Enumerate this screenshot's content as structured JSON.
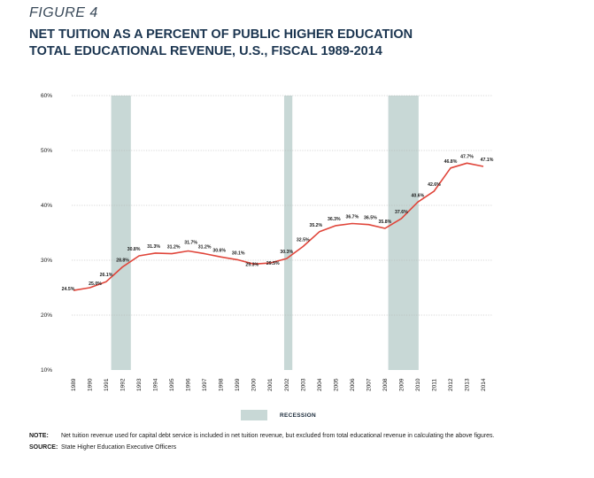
{
  "figure_label": "FIGURE 4",
  "title_line1": "NET TUITION AS A PERCENT OF PUBLIC HIGHER EDUCATION",
  "title_line2": "TOTAL EDUCATIONAL REVENUE, U.S., FISCAL 1989-2014",
  "legend": {
    "label": "RECESSION"
  },
  "note": {
    "label": "NOTE:",
    "text": "Net tuition revenue used for capital debt service is included in net tuition revenue, but excluded from total educational revenue in calculating the above figures."
  },
  "source": {
    "label": "SOURCE:",
    "text": "State Higher Education Executive Officers"
  },
  "colors": {
    "line": "#e0453a",
    "recession": "#c8d8d6",
    "grid": "#b0b0b0",
    "text": "#1a1a1a"
  },
  "chart_data": {
    "type": "line",
    "x": [
      1989,
      1990,
      1991,
      1992,
      1993,
      1994,
      1995,
      1996,
      1997,
      1998,
      1999,
      2000,
      2001,
      2002,
      2003,
      2004,
      2005,
      2006,
      2007,
      2008,
      2009,
      2010,
      2011,
      2012,
      2013,
      2014
    ],
    "series": [
      {
        "values": [
          24.5,
          25.0,
          26.1,
          28.8,
          30.8,
          31.3,
          31.2,
          31.7,
          31.2,
          30.6,
          30.1,
          29.3,
          29.5,
          30.3,
          32.5,
          35.2,
          36.3,
          36.7,
          36.5,
          35.8,
          37.6,
          40.6,
          42.6,
          46.8,
          47.7,
          47.1
        ]
      }
    ],
    "data_labels": [
      "24.5%",
      "25.0%",
      "26.1%",
      "28.8%",
      "30.8%",
      "31.3%",
      "31.2%",
      "31.7%",
      "31.2%",
      "30.6%",
      "30.1%",
      "29.3%",
      "29.5%",
      "30.3%",
      "32.5%",
      "35.2%",
      "36.3%",
      "36.7%",
      "36.5%",
      "35.8%",
      "37.6%",
      "40.6%",
      "42.6%",
      "46.8%",
      "47.7%",
      "47.1%"
    ],
    "y_ticks": [
      10,
      20,
      30,
      40,
      50,
      60
    ],
    "y_tick_labels": [
      "10%",
      "20%",
      "30%",
      "40%",
      "50%",
      "60%"
    ],
    "x_tick_labels": [
      "1989",
      "1990",
      "1991",
      "1992",
      "1993",
      "1994",
      "1995",
      "1996",
      "1997",
      "1998",
      "1999",
      "2000",
      "2001",
      "2002",
      "2003",
      "2004",
      "2005",
      "2006",
      "2007",
      "2008",
      "2009",
      "2010",
      "2011",
      "2012",
      "2013",
      "2014"
    ],
    "ylim": [
      10,
      60
    ],
    "recessions": [
      [
        1991.3,
        1992.5
      ],
      [
        2001.85,
        2002.35
      ],
      [
        2008.2,
        2010.05
      ]
    ],
    "grid": true,
    "legend_position": "bottom-center"
  }
}
